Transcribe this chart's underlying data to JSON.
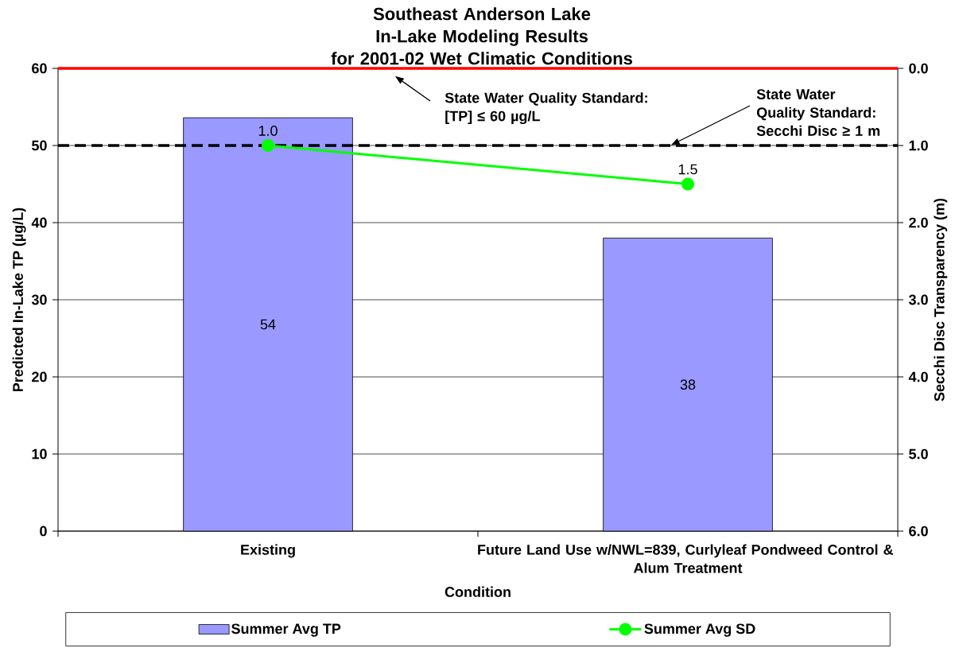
{
  "chart_data": {
    "type": "bar",
    "title": "Southeast Anderson Lake\nIn-Lake Modeling Results\nfor 2001-02 Wet Climatic Conditions",
    "xlabel": "Condition",
    "ylabel": "Predicted In-Lake TP (µg/L)",
    "y2label": "Secchi Disc Transparency (m)",
    "categories": [
      "Existing",
      "Future Land Use w/NWL=839, Curlyleaf Pondweed Control & Alum Treatment"
    ],
    "series": [
      {
        "name": "Summer Avg TP",
        "color": "#9999ff",
        "values": [
          53.6,
          38
        ],
        "value_labels": [
          "54",
          "38"
        ]
      },
      {
        "name": "Summer Avg SD",
        "type": "line",
        "axis": "y2",
        "color": "#00ff00",
        "values": [
          1.0,
          1.5
        ],
        "value_labels": [
          "1.0",
          "1.5"
        ],
        "marker": "circle",
        "line_style": "solid"
      }
    ],
    "ylim": [
      0,
      60
    ],
    "yticks": [
      0,
      10,
      20,
      30,
      40,
      50,
      60
    ],
    "y2lim": [
      6,
      0
    ],
    "y2ticks": [
      {
        "value": 0,
        "label": "0.0"
      },
      {
        "value": 1,
        "label": "1.0"
      },
      {
        "value": 2,
        "label": "2.0"
      },
      {
        "value": 3,
        "label": "3.0"
      },
      {
        "value": 4,
        "label": "4.0"
      },
      {
        "value": 5,
        "label": "5.0"
      },
      {
        "value": 6,
        "label": "6.0"
      }
    ],
    "ref_lines": [
      {
        "axis": "y",
        "value": 60,
        "label": "State Water Quality Standard: [TP] ≤ 60 µg/L",
        "color": "#ff0000",
        "line_style": "solid"
      },
      {
        "axis": "y2",
        "value": 1,
        "label": "State Water Quality Standard: Secchi Disc ≥ 1 m",
        "color": "#000000",
        "line_style": "dashed"
      }
    ],
    "grid": "y",
    "legend": "bottom"
  }
}
